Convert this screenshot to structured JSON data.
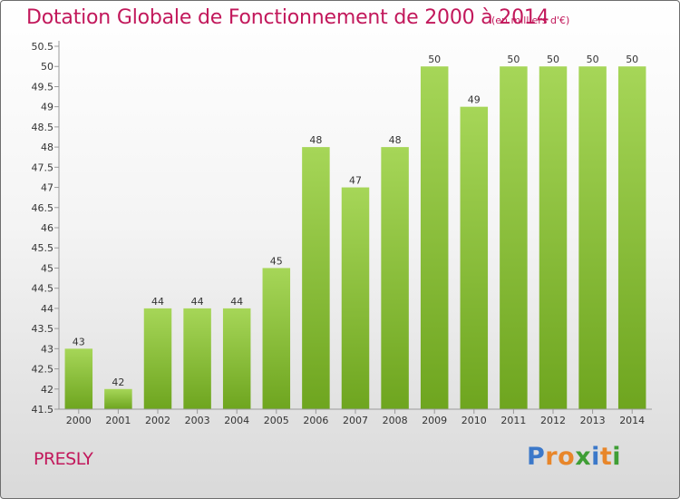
{
  "chart_data": {
    "type": "bar",
    "title": "Dotation Globale de Fonctionnement de 2000 à 2014",
    "unit_note": "(en milliers d'€)",
    "categories": [
      "2000",
      "2001",
      "2002",
      "2003",
      "2004",
      "2005",
      "2006",
      "2007",
      "2008",
      "2009",
      "2010",
      "2011",
      "2012",
      "2013",
      "2014"
    ],
    "values": [
      43,
      42,
      44,
      44,
      44,
      45,
      48,
      47,
      48,
      50,
      49,
      50,
      50,
      50,
      50
    ],
    "ylim": [
      41.5,
      50.5
    ],
    "yticks": [
      "41.5",
      "42",
      "42.5",
      "43",
      "43.5",
      "44",
      "44.5",
      "45",
      "45.5",
      "46",
      "46.5",
      "47",
      "47.5",
      "48",
      "48.5",
      "49",
      "49.5",
      "50",
      "50.5"
    ],
    "xlabel": "",
    "ylabel": "",
    "grid": false,
    "bar_color_light": "#a6d658",
    "bar_color_dark": "#6ea51f"
  },
  "footer": {
    "commune": "PRESLY",
    "logo_letters": [
      "P",
      "r",
      "o",
      "x",
      "i",
      "t",
      "i"
    ],
    "logo_colors": [
      "#3b78c9",
      "#e8862a",
      "#e8862a",
      "#3f9e35",
      "#3b78c9",
      "#e8862a",
      "#3f9e35"
    ]
  }
}
